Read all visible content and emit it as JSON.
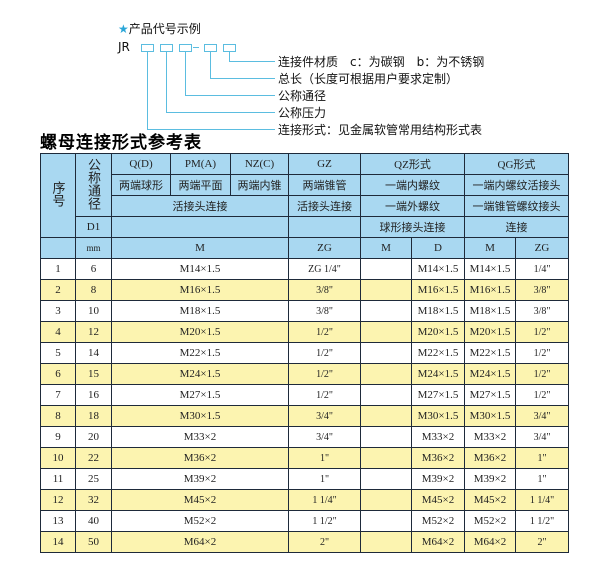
{
  "example": {
    "star": "★",
    "title": "产品代号示例",
    "code": "JR",
    "dash": "-",
    "labels": [
      "连接件材质　c：为碳钢　b：为不锈钢",
      "总长（长度可根据用户要求定制）",
      "公称通径",
      "公称压力",
      "连接形式：见金属软管常用结构形式表"
    ]
  },
  "table_title": "螺母连接形式参考表",
  "header": {
    "seq": "序号",
    "dn": "公称通径",
    "d1": "D1",
    "mm": "mm",
    "q": "Q(D)",
    "pm": "PM(A)",
    "nz": "NZ(C)",
    "gz": "GZ",
    "qz": "QZ形式",
    "qg": "QG形式",
    "q2": "两端球形",
    "pm2": "两端平面",
    "nz2": "两端内锥",
    "gz2": "两端锥管",
    "qz2": "一端内螺纹",
    "qg2": "一端内螺纹活接头",
    "union": "活接头连接",
    "gz3": "活接头连接",
    "qz3": "一端外螺纹",
    "qg3": "一端锥管螺纹接头",
    "qz4": "球形接头连接",
    "qg4": "连接",
    "m": "M",
    "zg": "ZG",
    "qzm": "M",
    "qzd": "D",
    "qgm": "M",
    "qgzg": "ZG"
  },
  "rows": [
    {
      "no": "1",
      "d1": "6",
      "m": "M14×1.5",
      "zg": "ZG 1/4\"",
      "qzm": "",
      "qzd": "M14×1.5",
      "qgm": "M14×1.5",
      "qgzg": "1/4\""
    },
    {
      "no": "2",
      "d1": "8",
      "m": "M16×1.5",
      "zg": "3/8\"",
      "qzm": "",
      "qzd": "M16×1.5",
      "qgm": "M16×1.5",
      "qgzg": "3/8\""
    },
    {
      "no": "3",
      "d1": "10",
      "m": "M18×1.5",
      "zg": "3/8\"",
      "qzm": "",
      "qzd": "M18×1.5",
      "qgm": "M18×1.5",
      "qgzg": "3/8\""
    },
    {
      "no": "4",
      "d1": "12",
      "m": "M20×1.5",
      "zg": "1/2\"",
      "qzm": "",
      "qzd": "M20×1.5",
      "qgm": "M20×1.5",
      "qgzg": "1/2\""
    },
    {
      "no": "5",
      "d1": "14",
      "m": "M22×1.5",
      "zg": "1/2\"",
      "qzm": "",
      "qzd": "M22×1.5",
      "qgm": "M22×1.5",
      "qgzg": "1/2\""
    },
    {
      "no": "6",
      "d1": "15",
      "m": "M24×1.5",
      "zg": "1/2\"",
      "qzm": "",
      "qzd": "M24×1.5",
      "qgm": "M24×1.5",
      "qgzg": "1/2\""
    },
    {
      "no": "7",
      "d1": "16",
      "m": "M27×1.5",
      "zg": "1/2\"",
      "qzm": "",
      "qzd": "M27×1.5",
      "qgm": "M27×1.5",
      "qgzg": "1/2\""
    },
    {
      "no": "8",
      "d1": "18",
      "m": "M30×1.5",
      "zg": "3/4\"",
      "qzm": "",
      "qzd": "M30×1.5",
      "qgm": "M30×1.5",
      "qgzg": "3/4\""
    },
    {
      "no": "9",
      "d1": "20",
      "m": "M33×2",
      "zg": "3/4\"",
      "qzm": "",
      "qzd": "M33×2",
      "qgm": "M33×2",
      "qgzg": "3/4\""
    },
    {
      "no": "10",
      "d1": "22",
      "m": "M36×2",
      "zg": "1\"",
      "qzm": "",
      "qzd": "M36×2",
      "qgm": "M36×2",
      "qgzg": "1\""
    },
    {
      "no": "11",
      "d1": "25",
      "m": "M39×2",
      "zg": "1\"",
      "qzm": "",
      "qzd": "M39×2",
      "qgm": "M39×2",
      "qgzg": "1\""
    },
    {
      "no": "12",
      "d1": "32",
      "m": "M45×2",
      "zg": "1 1/4\"",
      "qzm": "",
      "qzd": "M45×2",
      "qgm": "M45×2",
      "qgzg": "1 1/4\""
    },
    {
      "no": "13",
      "d1": "40",
      "m": "M52×2",
      "zg": "1 1/2\"",
      "qzm": "",
      "qzd": "M52×2",
      "qgm": "M52×2",
      "qgzg": "1 1/2\""
    },
    {
      "no": "14",
      "d1": "50",
      "m": "M64×2",
      "zg": "2\"",
      "qzm": "",
      "qzd": "M64×2",
      "qgm": "M64×2",
      "qgzg": "2\""
    }
  ],
  "colors": {
    "header": "#a9d8f1",
    "stripe": "#fcf4b0",
    "accent": "#5bbde0"
  }
}
